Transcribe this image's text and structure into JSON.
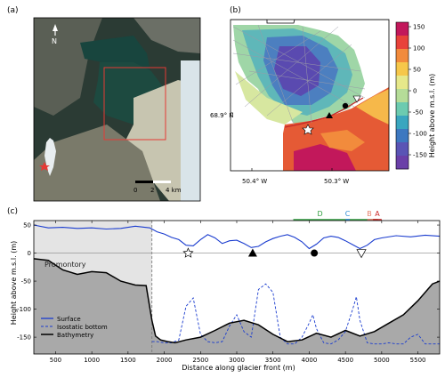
{
  "panels": {
    "a": {
      "label": "(a)",
      "north": "N",
      "scale_labels": [
        "0",
        "2",
        "4 km"
      ]
    },
    "b": {
      "label": "(b)",
      "lat_label": "68.9° N",
      "lon_labels": [
        "50.4° W",
        "50.3° W"
      ],
      "colorbar": {
        "title": "Height above m.s.l. (m)",
        "ticks": [
          "150",
          "100",
          "50",
          "0",
          "-50",
          "-100",
          "-150"
        ],
        "colors": [
          "#c2185b",
          "#e8423a",
          "#f28b3c",
          "#f6c74a",
          "#e6e88a",
          "#b5dc98",
          "#6ccbb0",
          "#3aa6bf",
          "#3d78c0",
          "#5a54b5",
          "#6a3fa8"
        ]
      }
    },
    "c": {
      "label": "(c)",
      "promontory_label": "Promontory",
      "site_labels": {
        "D": "D",
        "C": "C",
        "B": "B",
        "A": "A"
      },
      "site_colors": {
        "D": "#2e9e3e",
        "C": "#2f8fd8",
        "B": "#e87e6a",
        "A": "#cc2a2a"
      }
    }
  },
  "chart_data": {
    "type": "line",
    "xlabel": "Distance along glacier front (m)",
    "ylabel": "Height above m.s.l. (m)",
    "xlim": [
      200,
      5800
    ],
    "ylim": [
      -180,
      58
    ],
    "x_ticks": [
      500,
      1000,
      1500,
      2000,
      2500,
      3000,
      3500,
      4000,
      4500,
      5000,
      5500
    ],
    "y_ticks": [
      50,
      0,
      -50,
      -100,
      -150
    ],
    "promontory_end": 1830,
    "legend": [
      "Surface",
      "Isostatic bottom",
      "Bathymetry"
    ],
    "series": [
      {
        "name": "Surface",
        "x": [
          200,
          400,
          600,
          800,
          1000,
          1200,
          1400,
          1600,
          1800,
          1900,
          2000,
          2100,
          2200,
          2300,
          2400,
          2500,
          2600,
          2700,
          2800,
          2900,
          3000,
          3100,
          3200,
          3300,
          3400,
          3500,
          3600,
          3700,
          3800,
          3900,
          4000,
          4100,
          4200,
          4300,
          4400,
          4500,
          4600,
          4700,
          4800,
          4900,
          5000,
          5200,
          5400,
          5600,
          5800
        ],
        "y": [
          50,
          45,
          46,
          44,
          45,
          43,
          44,
          48,
          45,
          38,
          34,
          28,
          24,
          14,
          13,
          24,
          33,
          27,
          17,
          22,
          23,
          17,
          10,
          12,
          20,
          26,
          30,
          33,
          28,
          20,
          8,
          16,
          27,
          30,
          28,
          22,
          15,
          8,
          14,
          24,
          27,
          31,
          29,
          32,
          30
        ]
      },
      {
        "name": "Isostatic bottom",
        "x": [
          1830,
          1900,
          2000,
          2100,
          2200,
          2300,
          2400,
          2500,
          2600,
          2700,
          2800,
          2900,
          3000,
          3100,
          3200,
          3300,
          3400,
          3500,
          3600,
          3700,
          3800,
          3900,
          4000,
          4050,
          4100,
          4200,
          4300,
          4400,
          4500,
          4600,
          4650,
          4700,
          4800,
          4900,
          5000,
          5100,
          5200,
          5300,
          5400,
          5500,
          5600,
          5700,
          5800
        ],
        "y": [
          -158,
          -158,
          -160,
          -160,
          -155,
          -95,
          -80,
          -145,
          -158,
          -160,
          -158,
          -130,
          -110,
          -140,
          -150,
          -65,
          -55,
          -70,
          -150,
          -162,
          -162,
          -150,
          -125,
          -110,
          -135,
          -160,
          -162,
          -155,
          -140,
          -100,
          -78,
          -120,
          -160,
          -162,
          -162,
          -160,
          -162,
          -162,
          -150,
          -145,
          -162,
          -162,
          -162
        ]
      },
      {
        "name": "Bathymetry",
        "x": [
          200,
          400,
          600,
          800,
          1000,
          1200,
          1400,
          1600,
          1750,
          1830,
          1880,
          1950,
          2050,
          2150,
          2300,
          2500,
          2700,
          2900,
          3100,
          3300,
          3500,
          3700,
          3900,
          4100,
          4300,
          4500,
          4700,
          4900,
          5100,
          5300,
          5500,
          5700,
          5800
        ],
        "y": [
          -10,
          -13,
          -30,
          -38,
          -33,
          -35,
          -50,
          -57,
          -58,
          -120,
          -148,
          -155,
          -158,
          -160,
          -155,
          -150,
          -138,
          -125,
          -120,
          -128,
          -145,
          -158,
          -155,
          -143,
          -150,
          -138,
          -148,
          -140,
          -125,
          -110,
          -85,
          -55,
          -50
        ]
      }
    ],
    "markers": [
      {
        "shape": "star",
        "x": 2330,
        "y": 0
      },
      {
        "shape": "triangle-up",
        "x": 3220,
        "y": 0
      },
      {
        "shape": "circle",
        "x": 4070,
        "y": 0
      },
      {
        "shape": "triangle-down",
        "x": 4720,
        "y": 0
      }
    ],
    "site_ranges": [
      {
        "site": "D",
        "x0": 3780,
        "x1": 4950
      },
      {
        "site": "C",
        "x0": 4500,
        "x1": 4560
      },
      {
        "site": "B",
        "x0": 4800,
        "x1": 4940
      },
      {
        "site": "A",
        "x0": 4880,
        "x1": 5000
      }
    ]
  }
}
